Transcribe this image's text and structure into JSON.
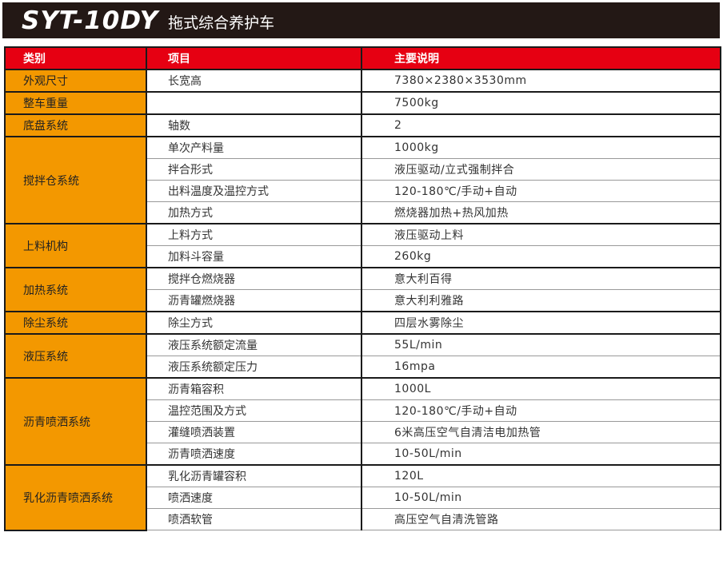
{
  "title": {
    "model": "SYT-10DY",
    "subtitle": "拖式综合养护车"
  },
  "colors": {
    "titlebar": "#231815",
    "header": "#e60012",
    "category": "#f39800"
  },
  "table": {
    "headers": [
      "类别",
      "项目",
      "主要说明"
    ],
    "groups": [
      {
        "category": "外观尺寸",
        "rows": [
          [
            "长宽高",
            "7380×2380×3530mm"
          ]
        ]
      },
      {
        "category": "整车重量",
        "rows": [
          [
            "",
            "7500kg"
          ]
        ]
      },
      {
        "category": "底盘系统",
        "rows": [
          [
            "轴数",
            "2"
          ]
        ]
      },
      {
        "category": "搅拌仓系统",
        "rows": [
          [
            "单次产料量",
            "1000kg"
          ],
          [
            "拌合形式",
            "液压驱动/立式强制拌合"
          ],
          [
            "出料温度及温控方式",
            "120-180℃/手动+自动"
          ],
          [
            "加热方式",
            "燃烧器加热+热风加热"
          ]
        ]
      },
      {
        "category": "上料机构",
        "rows": [
          [
            "上料方式",
            "液压驱动上料"
          ],
          [
            "加料斗容量",
            "260kg"
          ]
        ]
      },
      {
        "category": "加热系统",
        "rows": [
          [
            "搅拌仓燃烧器",
            "意大利百得"
          ],
          [
            "沥青罐燃烧器",
            "意大利利雅路"
          ]
        ]
      },
      {
        "category": "除尘系统",
        "rows": [
          [
            "除尘方式",
            "四层水雾除尘"
          ]
        ]
      },
      {
        "category": "液压系统",
        "rows": [
          [
            "液压系统额定流量",
            "55L/min"
          ],
          [
            "液压系统额定压力",
            "16mpa"
          ]
        ]
      },
      {
        "category": "沥青喷洒系统",
        "rows": [
          [
            "沥青箱容积",
            "1000L"
          ],
          [
            "温控范围及方式",
            "120-180℃/手动+自动"
          ],
          [
            "灌缝喷洒装置",
            "6米高压空气自清洁电加热管"
          ],
          [
            "沥青喷洒速度",
            "10-50L/min"
          ]
        ]
      },
      {
        "category": "乳化沥青喷洒系统",
        "rows": [
          [
            "乳化沥青罐容积",
            "120L"
          ],
          [
            "喷洒速度",
            "10-50L/min"
          ],
          [
            "喷洒软管",
            "高压空气自清洗管路"
          ]
        ]
      }
    ]
  }
}
